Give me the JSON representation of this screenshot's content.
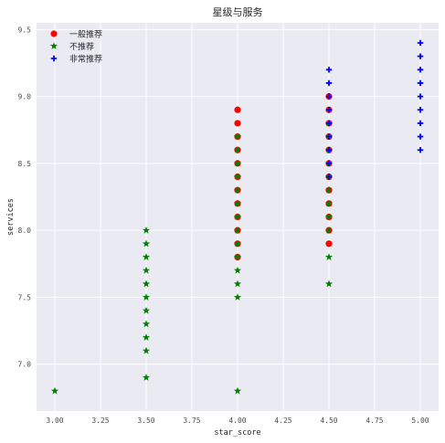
{
  "chart_data": {
    "type": "scatter",
    "title": "星级与服务",
    "xlabel": "star_score",
    "ylabel": "services",
    "xlim": [
      2.9,
      5.1
    ],
    "ylim": [
      6.65,
      9.55
    ],
    "x_ticks": [
      3.0,
      3.25,
      3.5,
      3.75,
      4.0,
      4.25,
      4.5,
      4.75,
      5.0
    ],
    "x_tick_labels": [
      "3.00",
      "3.25",
      "3.50",
      "3.75",
      "4.00",
      "4.25",
      "4.50",
      "4.75",
      "5.00"
    ],
    "y_ticks": [
      7.0,
      7.5,
      8.0,
      8.5,
      9.0,
      9.5
    ],
    "y_tick_labels": [
      "7.0",
      "7.5",
      "8.0",
      "8.5",
      "9.0",
      "9.5"
    ],
    "grid": true,
    "legend_position": "top-left",
    "series": [
      {
        "name": "一般推荐",
        "marker": "circle",
        "color": "#ff0000",
        "points": [
          [
            4.0,
            7.8
          ],
          [
            4.0,
            7.9
          ],
          [
            4.0,
            8.0
          ],
          [
            4.0,
            8.1
          ],
          [
            4.0,
            8.2
          ],
          [
            4.0,
            8.3
          ],
          [
            4.0,
            8.4
          ],
          [
            4.0,
            8.5
          ],
          [
            4.0,
            8.6
          ],
          [
            4.0,
            8.7
          ],
          [
            4.0,
            8.8
          ],
          [
            4.0,
            8.9
          ],
          [
            4.5,
            7.9
          ],
          [
            4.5,
            8.0
          ],
          [
            4.5,
            8.1
          ],
          [
            4.5,
            8.2
          ],
          [
            4.5,
            8.3
          ],
          [
            4.5,
            8.4
          ],
          [
            4.5,
            8.5
          ],
          [
            4.5,
            8.6
          ],
          [
            4.5,
            8.7
          ],
          [
            4.5,
            8.8
          ],
          [
            4.5,
            8.9
          ],
          [
            4.5,
            9.0
          ]
        ]
      },
      {
        "name": "不推荐",
        "marker": "star",
        "color": "#008000",
        "points": [
          [
            3.0,
            6.8
          ],
          [
            3.5,
            6.9
          ],
          [
            3.5,
            7.1
          ],
          [
            3.5,
            7.2
          ],
          [
            3.5,
            7.3
          ],
          [
            3.5,
            7.4
          ],
          [
            3.5,
            7.5
          ],
          [
            3.5,
            7.6
          ],
          [
            3.5,
            7.7
          ],
          [
            3.5,
            7.8
          ],
          [
            3.5,
            7.9
          ],
          [
            3.5,
            8.0
          ],
          [
            4.0,
            6.8
          ],
          [
            4.0,
            7.5
          ],
          [
            4.0,
            7.6
          ],
          [
            4.0,
            7.7
          ],
          [
            4.0,
            7.8
          ],
          [
            4.0,
            7.9
          ],
          [
            4.0,
            8.0
          ],
          [
            4.0,
            8.1
          ],
          [
            4.0,
            8.2
          ],
          [
            4.0,
            8.3
          ],
          [
            4.0,
            8.4
          ],
          [
            4.0,
            8.5
          ],
          [
            4.0,
            8.6
          ],
          [
            4.0,
            8.7
          ],
          [
            4.5,
            7.6
          ],
          [
            4.5,
            7.8
          ],
          [
            4.5,
            8.0
          ],
          [
            4.5,
            8.1
          ],
          [
            4.5,
            8.2
          ],
          [
            4.5,
            8.3
          ],
          [
            4.5,
            8.4
          ],
          [
            4.5,
            8.5
          ],
          [
            4.5,
            8.6
          ],
          [
            4.5,
            8.7
          ],
          [
            4.5,
            8.8
          ]
        ]
      },
      {
        "name": "非常推荐",
        "marker": "plus",
        "color": "#0000ff",
        "points": [
          [
            4.5,
            8.4
          ],
          [
            4.5,
            8.5
          ],
          [
            4.5,
            8.6
          ],
          [
            4.5,
            8.7
          ],
          [
            4.5,
            8.8
          ],
          [
            4.5,
            8.9
          ],
          [
            4.5,
            9.0
          ],
          [
            4.5,
            9.1
          ],
          [
            4.5,
            9.2
          ],
          [
            5.0,
            8.6
          ],
          [
            5.0,
            8.7
          ],
          [
            5.0,
            8.8
          ],
          [
            5.0,
            8.9
          ],
          [
            5.0,
            9.0
          ],
          [
            5.0,
            9.1
          ],
          [
            5.0,
            9.2
          ],
          [
            5.0,
            9.3
          ],
          [
            5.0,
            9.4
          ]
        ]
      }
    ]
  }
}
